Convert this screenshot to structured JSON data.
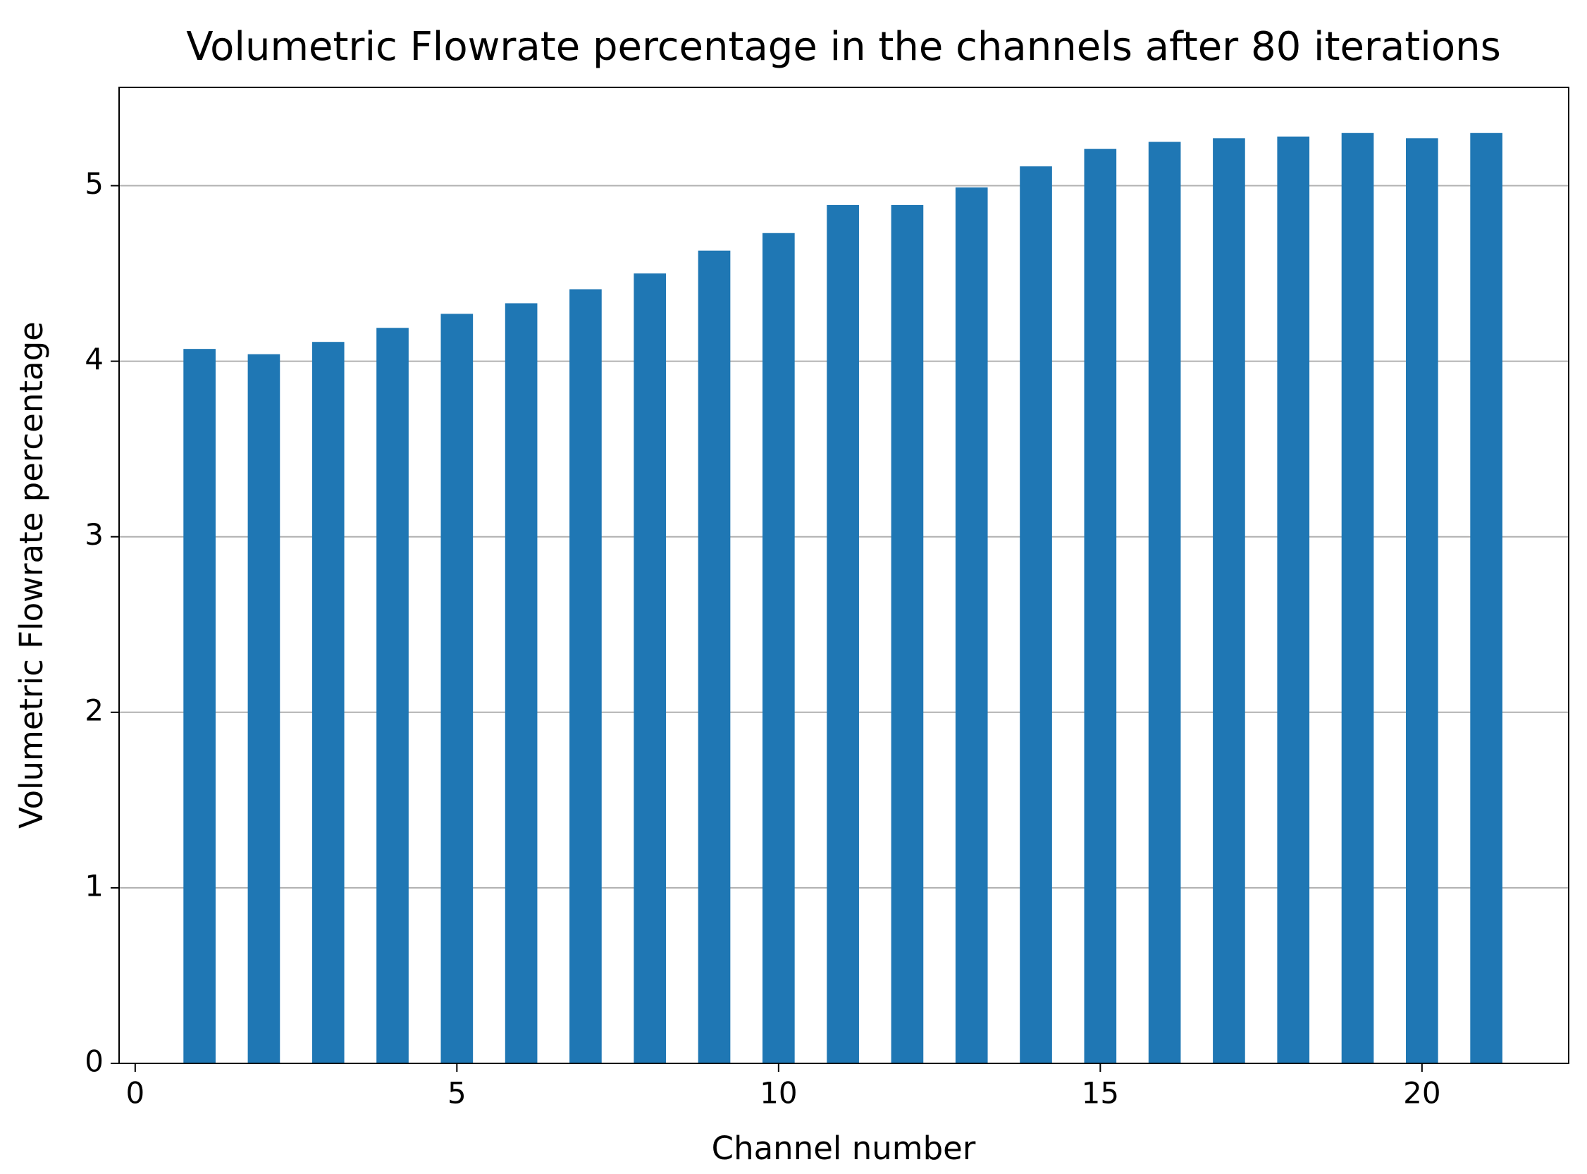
{
  "chart_data": {
    "type": "bar",
    "title": "Volumetric Flowrate percentage in the channels after 80 iterations",
    "x_label": "Channel number",
    "y_label": "Volumetric Flowrate percentage",
    "x": [
      1,
      2,
      3,
      4,
      5,
      6,
      7,
      8,
      9,
      10,
      11,
      12,
      13,
      14,
      15,
      16,
      17,
      18,
      19,
      20,
      21
    ],
    "values": [
      4.07,
      4.04,
      4.11,
      4.19,
      4.27,
      4.33,
      4.41,
      4.5,
      4.63,
      4.73,
      4.89,
      4.89,
      4.99,
      5.11,
      5.21,
      5.25,
      5.27,
      5.28,
      5.3,
      5.27,
      5.3
    ],
    "color": "#1f77b4",
    "xlim": [
      -0.25,
      22.28
    ],
    "xticks": [
      0,
      5,
      10,
      15,
      20
    ],
    "ylim": [
      0,
      5.56
    ],
    "yticks": [
      0,
      1,
      2,
      3,
      4,
      5
    ],
    "grid": "y"
  }
}
